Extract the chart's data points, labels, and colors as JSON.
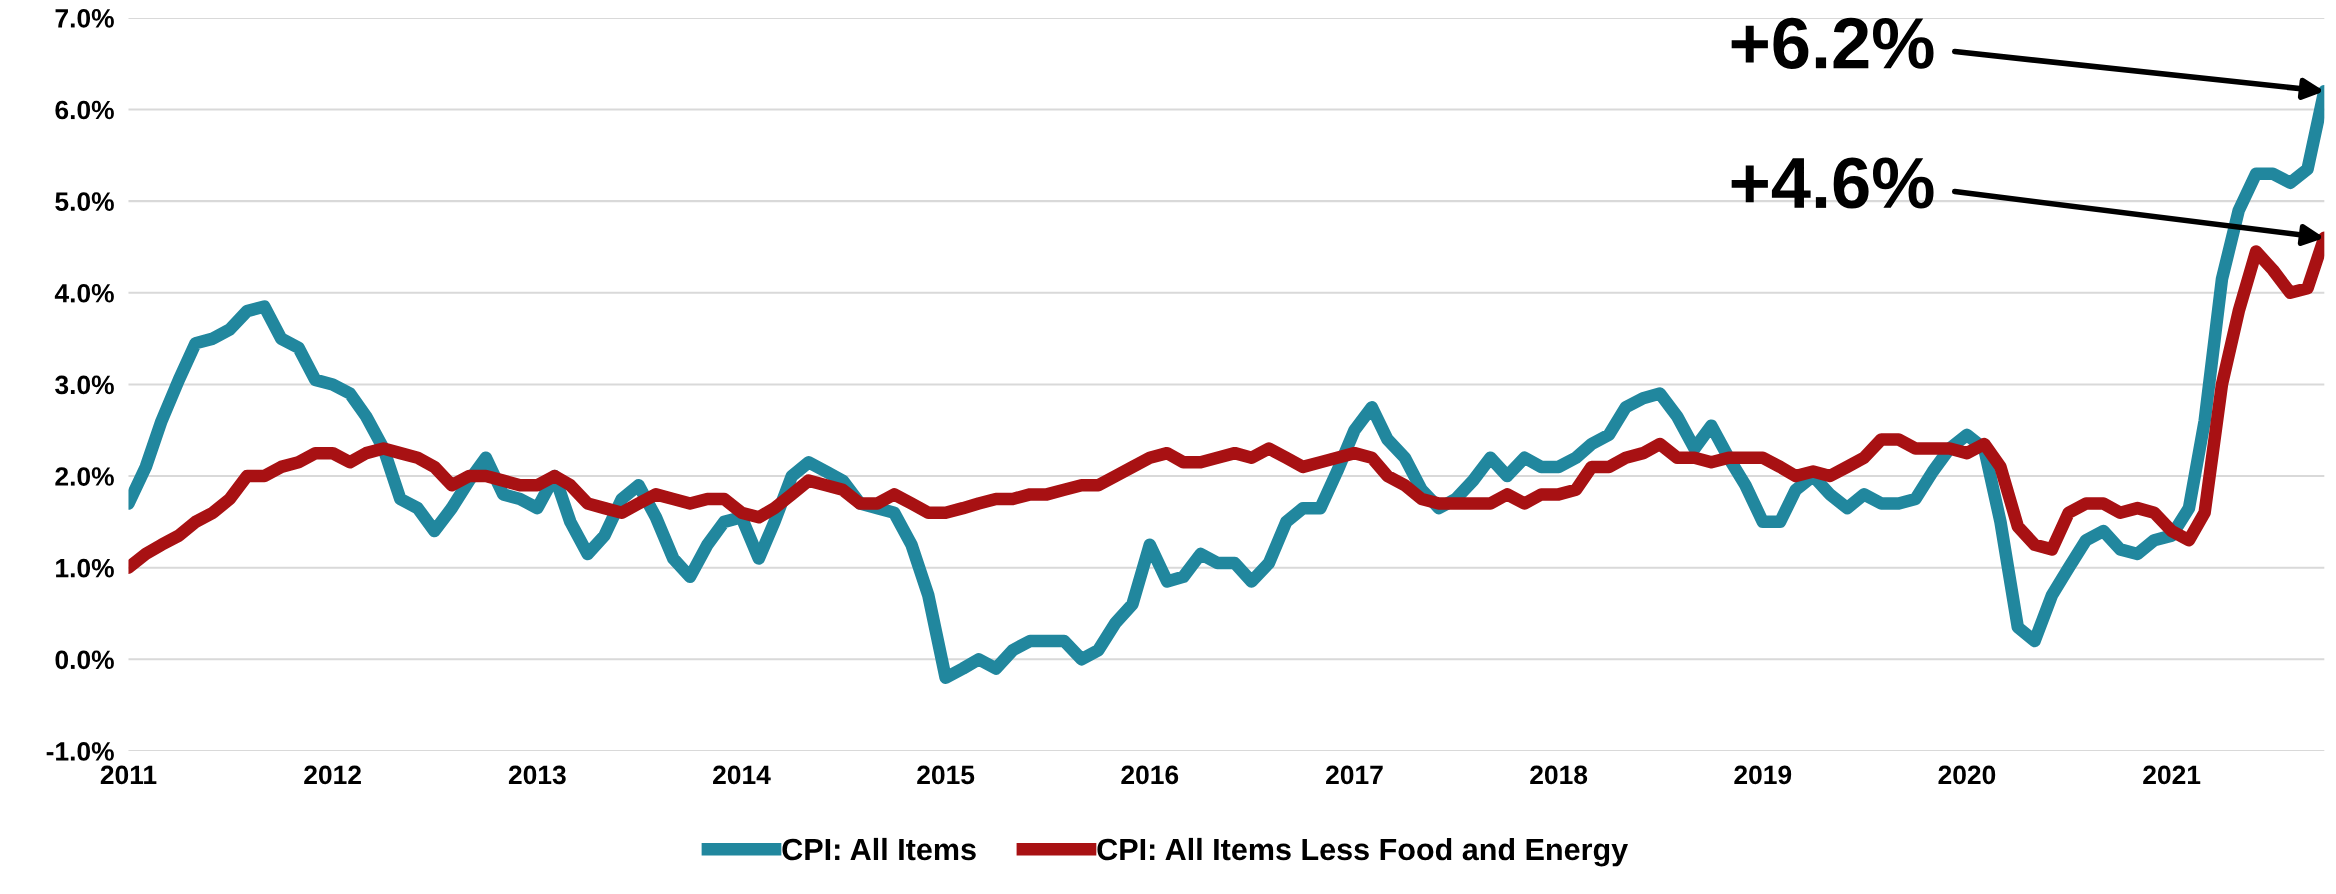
{
  "chart_data": {
    "type": "line",
    "x": [
      "2011-01",
      "2011-02",
      "2011-03",
      "2011-04",
      "2011-05",
      "2011-06",
      "2011-07",
      "2011-08",
      "2011-09",
      "2011-10",
      "2011-11",
      "2011-12",
      "2012-01",
      "2012-02",
      "2012-03",
      "2012-04",
      "2012-05",
      "2012-06",
      "2012-07",
      "2012-08",
      "2012-09",
      "2012-10",
      "2012-11",
      "2012-12",
      "2013-01",
      "2013-02",
      "2013-03",
      "2013-04",
      "2013-05",
      "2013-06",
      "2013-07",
      "2013-08",
      "2013-09",
      "2013-10",
      "2013-11",
      "2013-12",
      "2014-01",
      "2014-02",
      "2014-03",
      "2014-04",
      "2014-05",
      "2014-06",
      "2014-07",
      "2014-08",
      "2014-09",
      "2014-10",
      "2014-11",
      "2014-12",
      "2015-01",
      "2015-02",
      "2015-03",
      "2015-04",
      "2015-05",
      "2015-06",
      "2015-07",
      "2015-08",
      "2015-09",
      "2015-10",
      "2015-11",
      "2015-12",
      "2016-01",
      "2016-02",
      "2016-03",
      "2016-04",
      "2016-05",
      "2016-06",
      "2016-07",
      "2016-08",
      "2016-09",
      "2016-10",
      "2016-11",
      "2016-12",
      "2017-01",
      "2017-02",
      "2017-03",
      "2017-04",
      "2017-05",
      "2017-06",
      "2017-07",
      "2017-08",
      "2017-09",
      "2017-10",
      "2017-11",
      "2017-12",
      "2018-01",
      "2018-02",
      "2018-03",
      "2018-04",
      "2018-05",
      "2018-06",
      "2018-07",
      "2018-08",
      "2018-09",
      "2018-10",
      "2018-11",
      "2018-12",
      "2019-01",
      "2019-02",
      "2019-03",
      "2019-04",
      "2019-05",
      "2019-06",
      "2019-07",
      "2019-08",
      "2019-09",
      "2019-10",
      "2019-11",
      "2019-12",
      "2020-01",
      "2020-02",
      "2020-03",
      "2020-04",
      "2020-05",
      "2020-06",
      "2020-07",
      "2020-08",
      "2020-09",
      "2020-10",
      "2020-11",
      "2020-12",
      "2021-01",
      "2021-02",
      "2021-03",
      "2021-04",
      "2021-05",
      "2021-06",
      "2021-07",
      "2021-08",
      "2021-09",
      "2021-10"
    ],
    "series": [
      {
        "name": "CPI: All Items",
        "color": "#21879e",
        "values": [
          1.7,
          2.1,
          2.6,
          3.05,
          3.45,
          3.5,
          3.6,
          3.8,
          3.85,
          3.5,
          3.4,
          3.05,
          3.0,
          2.9,
          2.65,
          2.3,
          1.75,
          1.65,
          1.4,
          1.65,
          1.95,
          2.2,
          1.8,
          1.75,
          1.65,
          2.0,
          1.5,
          1.15,
          1.35,
          1.75,
          1.9,
          1.55,
          1.1,
          0.9,
          1.25,
          1.5,
          1.55,
          1.1,
          1.5,
          2.0,
          2.15,
          2.05,
          1.95,
          1.7,
          1.65,
          1.6,
          1.25,
          0.7,
          -0.2,
          -0.1,
          0.0,
          -0.1,
          0.1,
          0.2,
          0.2,
          0.2,
          0.0,
          0.1,
          0.4,
          0.6,
          1.25,
          0.85,
          0.9,
          1.15,
          1.05,
          1.05,
          0.85,
          1.05,
          1.5,
          1.65,
          1.65,
          2.05,
          2.5,
          2.75,
          2.4,
          2.2,
          1.85,
          1.65,
          1.75,
          1.95,
          2.2,
          2.0,
          2.2,
          2.1,
          2.1,
          2.2,
          2.35,
          2.45,
          2.75,
          2.85,
          2.9,
          2.65,
          2.3,
          2.55,
          2.2,
          1.9,
          1.5,
          1.5,
          1.85,
          2.0,
          1.8,
          1.65,
          1.8,
          1.7,
          1.7,
          1.75,
          2.05,
          2.3,
          2.45,
          2.3,
          1.5,
          0.35,
          0.2,
          0.7,
          1.0,
          1.3,
          1.4,
          1.2,
          1.15,
          1.3,
          1.35,
          1.65,
          2.6,
          4.15,
          4.9,
          5.3,
          5.3,
          5.2,
          5.35,
          6.2
        ]
      },
      {
        "name": "CPI: All Items Less Food and Energy",
        "color": "#a81113",
        "values": [
          1.0,
          1.15,
          1.25,
          1.35,
          1.5,
          1.6,
          1.75,
          2.0,
          2.0,
          2.1,
          2.15,
          2.25,
          2.25,
          2.15,
          2.25,
          2.3,
          2.25,
          2.2,
          2.1,
          1.9,
          2.0,
          2.0,
          1.95,
          1.9,
          1.9,
          2.0,
          1.9,
          1.7,
          1.65,
          1.6,
          1.7,
          1.8,
          1.75,
          1.7,
          1.75,
          1.75,
          1.6,
          1.55,
          1.65,
          1.8,
          1.95,
          1.9,
          1.85,
          1.7,
          1.7,
          1.8,
          1.7,
          1.6,
          1.6,
          1.65,
          1.7,
          1.75,
          1.75,
          1.8,
          1.8,
          1.85,
          1.9,
          1.9,
          2.0,
          2.1,
          2.2,
          2.25,
          2.15,
          2.15,
          2.2,
          2.25,
          2.2,
          2.3,
          2.2,
          2.1,
          2.15,
          2.2,
          2.25,
          2.2,
          2.0,
          1.9,
          1.75,
          1.7,
          1.7,
          1.7,
          1.7,
          1.8,
          1.7,
          1.8,
          1.8,
          1.85,
          2.1,
          2.1,
          2.2,
          2.25,
          2.35,
          2.2,
          2.2,
          2.15,
          2.2,
          2.2,
          2.2,
          2.1,
          2.0,
          2.05,
          2.0,
          2.1,
          2.2,
          2.4,
          2.4,
          2.3,
          2.3,
          2.3,
          2.25,
          2.35,
          2.1,
          1.45,
          1.25,
          1.2,
          1.6,
          1.7,
          1.7,
          1.6,
          1.65,
          1.6,
          1.4,
          1.3,
          1.6,
          3.0,
          3.8,
          4.45,
          4.25,
          4.0,
          4.05,
          4.6
        ]
      }
    ],
    "xlim": [
      "2011-01",
      "2021-10"
    ],
    "xticks": [
      {
        "value": "2011-01",
        "label": "2011"
      },
      {
        "value": "2012-01",
        "label": "2012"
      },
      {
        "value": "2013-01",
        "label": "2013"
      },
      {
        "value": "2014-01",
        "label": "2014"
      },
      {
        "value": "2015-01",
        "label": "2015"
      },
      {
        "value": "2016-01",
        "label": "2016"
      },
      {
        "value": "2017-01",
        "label": "2017"
      },
      {
        "value": "2018-01",
        "label": "2018"
      },
      {
        "value": "2019-01",
        "label": "2019"
      },
      {
        "value": "2020-01",
        "label": "2020"
      },
      {
        "value": "2021-01",
        "label": "2021"
      }
    ],
    "ylim": [
      -1.0,
      7.0
    ],
    "yticks": [
      {
        "value": -1.0,
        "label": "-1.0%"
      },
      {
        "value": 0.0,
        "label": "0.0%"
      },
      {
        "value": 1.0,
        "label": "1.0%"
      },
      {
        "value": 2.0,
        "label": "2.0%"
      },
      {
        "value": 3.0,
        "label": "3.0%"
      },
      {
        "value": 4.0,
        "label": "4.0%"
      },
      {
        "value": 5.0,
        "label": "5.0%"
      },
      {
        "value": 6.0,
        "label": "6.0%"
      },
      {
        "value": 7.0,
        "label": "7.0%"
      }
    ],
    "grid": "y",
    "legend": "bottom",
    "line_style": "solid",
    "marker": "none",
    "annotations": [
      {
        "text": "+6.2%",
        "x": "2021-10",
        "y": 6.2
      },
      {
        "text": "+4.6%",
        "x": "2021-10",
        "y": 4.6
      }
    ]
  }
}
